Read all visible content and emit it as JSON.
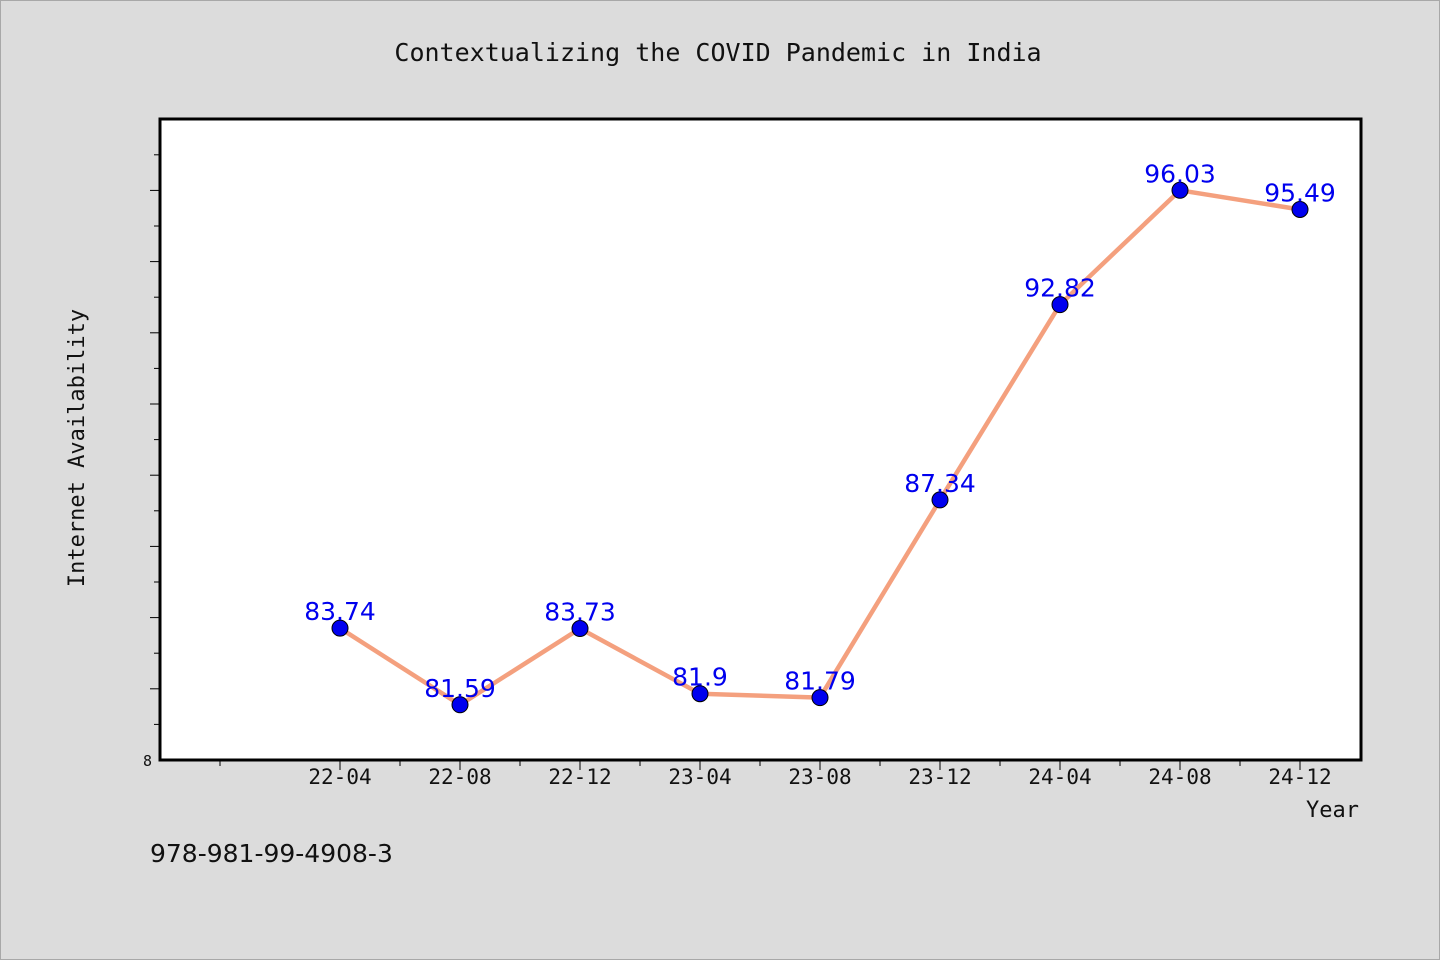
{
  "chart_data": {
    "type": "line",
    "title": "Contextualizing the COVID Pandemic in India",
    "xlabel": "Year",
    "ylabel": "Internet Availability",
    "categories": [
      "22-04",
      "22-08",
      "22-12",
      "23-04",
      "23-08",
      "23-12",
      "24-04",
      "24-08",
      "24-12"
    ],
    "series": [
      {
        "values": [
          83.74,
          81.59,
          83.73,
          81.9,
          81.79,
          87.34,
          92.82,
          96.03,
          95.49
        ],
        "data_labels": [
          "83.74",
          "81.59",
          "83.73",
          "81.9",
          "81.79",
          "87.34",
          "92.82",
          "96.03",
          "95.49"
        ]
      }
    ],
    "y_axis_label_min": "8",
    "ylim": [
      80.04,
      98.03
    ],
    "grid": false,
    "colors": {
      "line": "#f4a07e",
      "marker": "#0000ee",
      "data_label": "#0000ee"
    }
  },
  "footnote": "978-981-99-4908-3"
}
